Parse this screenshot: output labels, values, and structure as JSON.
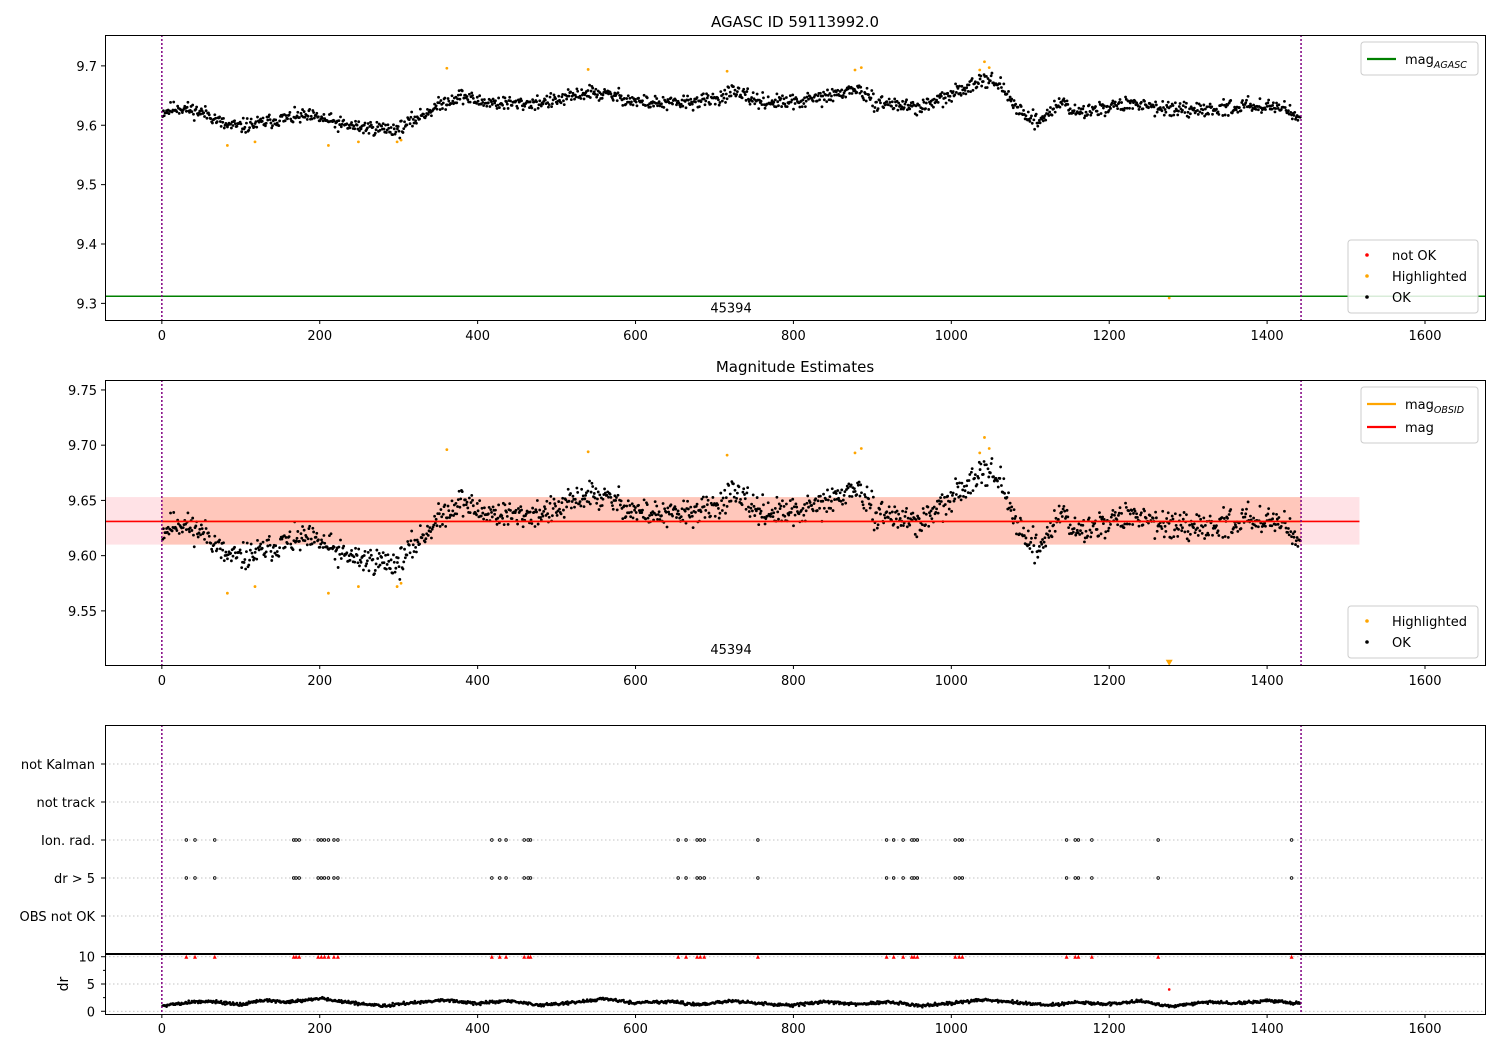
{
  "chart_data": [
    {
      "type": "scatter",
      "title": "AGASC ID 59113992.0",
      "xlabel": "",
      "ylabel": "",
      "xlim": [
        -72,
        1676
      ],
      "ylim": [
        9.272,
        9.752
      ],
      "x_ticks": [
        0,
        200,
        400,
        600,
        800,
        1000,
        1200,
        1400,
        1600
      ],
      "y_ticks": [
        9.3,
        9.4,
        9.5,
        9.6,
        9.7
      ],
      "grid": false,
      "vertical_lines": [
        0,
        1443
      ],
      "obsid_label": {
        "text": "45394",
        "x": 721,
        "y": 9.285
      },
      "reference_lines": [
        {
          "name": "mag_AGASC",
          "name_main": "mag",
          "name_sub": "AGASC",
          "y": 9.312,
          "x_range": [
            -72,
            1676
          ],
          "color": "#008000"
        }
      ],
      "legend_top": {
        "position": "top-right",
        "entries": [
          {
            "main": "mag",
            "sub": "AGASC",
            "kind": "line",
            "color": "#008000"
          }
        ]
      },
      "legend_bottom": {
        "position": "lower-right",
        "entries": [
          {
            "label": "not OK",
            "kind": "dot",
            "color": "#ff0000"
          },
          {
            "label": "Highlighted",
            "kind": "dot",
            "color": "#ffa500"
          },
          {
            "label": "OK",
            "kind": "dot",
            "color": "#000000"
          }
        ]
      },
      "series": [
        {
          "name": "OK",
          "color": "#000000",
          "generated": {
            "n": 1440,
            "x_start": 1,
            "x_end": 1442,
            "knots_x": [
              0,
              20,
              40,
              60,
              80,
              100,
              120,
              140,
              160,
              180,
              200,
              230,
              260,
              300,
              320,
              340,
              360,
              380,
              400,
              450,
              500,
              540,
              580,
              600,
              640,
              700,
              720,
              760,
              800,
              850,
              880,
              900,
              960,
              1000,
              1040,
              1060,
              1080,
              1110,
              1140,
              1160,
              1200,
              1240,
              1300,
              1360,
              1400,
              1443
            ],
            "knots_y": [
              9.622,
              9.63,
              9.625,
              9.618,
              9.6,
              9.598,
              9.602,
              9.608,
              9.612,
              9.615,
              9.612,
              9.6,
              9.596,
              9.593,
              9.61,
              9.625,
              9.64,
              9.65,
              9.64,
              9.636,
              9.641,
              9.656,
              9.648,
              9.64,
              9.636,
              9.643,
              9.656,
              9.64,
              9.638,
              9.65,
              9.662,
              9.64,
              9.63,
              9.65,
              9.68,
              9.67,
              9.632,
              9.605,
              9.64,
              9.62,
              9.632,
              9.636,
              9.622,
              9.631,
              9.635,
              9.618
            ],
            "noise": 0.013,
            "seed": 11
          }
        },
        {
          "name": "Highlighted",
          "color": "#ffa500",
          "x": [
            83,
            118,
            211,
            249,
            298,
            303,
            361,
            540,
            716,
            878,
            886,
            1036,
            1042,
            1048,
            1276
          ],
          "y": [
            9.566,
            9.572,
            9.566,
            9.572,
            9.572,
            9.575,
            9.696,
            9.694,
            9.691,
            9.693,
            9.697,
            9.693,
            9.707,
            9.697,
            9.309
          ]
        }
      ]
    },
    {
      "type": "scatter",
      "title": "Magnitude Estimates",
      "xlabel": "",
      "ylabel": "",
      "xlim": [
        -72,
        1676
      ],
      "ylim": [
        9.501,
        9.759
      ],
      "x_ticks": [
        0,
        200,
        400,
        600,
        800,
        1000,
        1200,
        1400,
        1600
      ],
      "y_ticks": [
        9.55,
        9.6,
        9.65,
        9.7,
        9.75
      ],
      "grid": false,
      "vertical_lines": [
        0,
        1443
      ],
      "obsid_label": {
        "text": "45394",
        "x": 721,
        "y": 9.511
      },
      "bands": [
        {
          "name": "mag band",
          "x_range": [
            -72,
            1517
          ],
          "y_range": [
            9.61,
            9.653
          ],
          "color": "#ffb6c1",
          "opacity": 0.4
        },
        {
          "name": "mag_OBSID band",
          "x_range": [
            0,
            1443
          ],
          "y_range": [
            9.61,
            9.653
          ],
          "color": "#ffa07a",
          "opacity": 0.4
        }
      ],
      "reference_lines": [
        {
          "name": "mag_OBSID",
          "name_main": "mag",
          "name_sub": "OBSID",
          "y": 9.631,
          "x_range": [
            0,
            1443
          ],
          "color": "#ffa500"
        },
        {
          "name": "mag",
          "y": 9.631,
          "x_range": [
            -72,
            1517
          ],
          "color": "#ff0000"
        }
      ],
      "legend_top": {
        "position": "top-right",
        "entries": [
          {
            "main": "mag",
            "sub": "OBSID",
            "kind": "line",
            "color": "#ffa500"
          },
          {
            "main": "mag",
            "sub": "",
            "kind": "line",
            "color": "#ff0000"
          }
        ]
      },
      "legend_bottom": {
        "position": "lower-right",
        "entries": [
          {
            "label": "Highlighted",
            "kind": "dot",
            "color": "#ffa500"
          },
          {
            "label": "OK",
            "kind": "dot",
            "color": "#000000"
          }
        ]
      },
      "series": [
        {
          "name": "OK",
          "color": "#000000",
          "generated": {
            "n": 1440,
            "x_start": 1,
            "x_end": 1442,
            "knots_x": [
              0,
              20,
              40,
              60,
              80,
              100,
              120,
              140,
              160,
              180,
              200,
              230,
              260,
              300,
              320,
              340,
              360,
              380,
              400,
              450,
              500,
              540,
              580,
              600,
              640,
              700,
              720,
              760,
              800,
              850,
              880,
              900,
              960,
              1000,
              1040,
              1060,
              1080,
              1110,
              1140,
              1160,
              1200,
              1240,
              1300,
              1360,
              1400,
              1443
            ],
            "knots_y": [
              9.622,
              9.63,
              9.625,
              9.618,
              9.6,
              9.598,
              9.602,
              9.608,
              9.612,
              9.615,
              9.612,
              9.6,
              9.596,
              9.593,
              9.61,
              9.625,
              9.64,
              9.65,
              9.64,
              9.636,
              9.641,
              9.656,
              9.648,
              9.64,
              9.636,
              9.643,
              9.656,
              9.64,
              9.638,
              9.65,
              9.662,
              9.64,
              9.63,
              9.65,
              9.68,
              9.67,
              9.632,
              9.605,
              9.64,
              9.62,
              9.632,
              9.636,
              9.622,
              9.631,
              9.635,
              9.618
            ],
            "noise": 0.013,
            "seed": 11
          }
        },
        {
          "name": "Highlighted",
          "color": "#ffa500",
          "x": [
            83,
            118,
            211,
            249,
            298,
            303,
            361,
            540,
            716,
            878,
            886,
            1036,
            1042,
            1048
          ],
          "y": [
            9.566,
            9.572,
            9.566,
            9.572,
            9.572,
            9.575,
            9.696,
            9.694,
            9.691,
            9.693,
            9.697,
            9.693,
            9.707,
            9.697
          ]
        },
        {
          "name": "Highlighted (off scale)",
          "color": "#ffa500",
          "marker": "triangle-down",
          "x": [
            1276
          ],
          "y": [
            9.503
          ]
        }
      ]
    },
    {
      "type": "scatter",
      "title": "",
      "xlabel": "",
      "ylabel": "",
      "xlim": [
        -72,
        1676
      ],
      "y_categories": [
        "not Kalman",
        "not track",
        "Ion. rad.",
        "dr > 5",
        "OBS not OK"
      ],
      "grid": true,
      "vertical_lines": [
        0,
        1443
      ],
      "series": [
        {
          "name": "Ion. rad.",
          "color": "#000000",
          "marker": "open-circle",
          "x": [
            31,
            42,
            67,
            167,
            170,
            174,
            198,
            202,
            206,
            211,
            218,
            223,
            418,
            428,
            436,
            459,
            464,
            467,
            654,
            664,
            678,
            682,
            687,
            755,
            918,
            927,
            939,
            950,
            953,
            957,
            1005,
            1010,
            1014,
            1146,
            1157,
            1161,
            1178,
            1262,
            1431
          ]
        },
        {
          "name": "dr > 5",
          "color": "#000000",
          "marker": "open-circle",
          "x": [
            31,
            42,
            67,
            167,
            170,
            174,
            198,
            202,
            206,
            211,
            218,
            223,
            418,
            428,
            436,
            459,
            464,
            467,
            654,
            664,
            678,
            682,
            687,
            755,
            918,
            927,
            939,
            950,
            953,
            957,
            1005,
            1010,
            1014,
            1146,
            1157,
            1161,
            1178,
            1262,
            1431
          ]
        }
      ]
    },
    {
      "type": "scatter",
      "title": "",
      "xlabel": "",
      "ylabel": "dr",
      "xlim": [
        -72,
        1676
      ],
      "ylim": [
        -0.5,
        10.5
      ],
      "y_ticks": [
        0,
        5,
        10
      ],
      "grid": true,
      "vertical_lines": [
        0,
        1443
      ],
      "series": [
        {
          "name": "dr",
          "color": "#000000",
          "generated": {
            "n": 1440,
            "x_start": 1,
            "x_end": 1442,
            "knots_x": [
              0,
              30,
              60,
              100,
              130,
              160,
              200,
              240,
              280,
              320,
              360,
              400,
              440,
              480,
              520,
              560,
              600,
              640,
              680,
              720,
              760,
              800,
              840,
              880,
              920,
              960,
              1000,
              1040,
              1080,
              1120,
              1160,
              1200,
              1240,
              1280,
              1320,
              1360,
              1400,
              1443
            ],
            "knots_y": [
              1.0,
              1.6,
              1.9,
              1.2,
              2.1,
              1.6,
              2.4,
              1.5,
              1.0,
              1.6,
              2.1,
              1.4,
              1.9,
              1.1,
              1.6,
              2.3,
              1.5,
              1.8,
              1.2,
              1.9,
              1.4,
              1.1,
              1.8,
              1.3,
              1.7,
              1.0,
              1.5,
              2.1,
              1.7,
              1.1,
              1.6,
              1.3,
              1.9,
              0.9,
              1.7,
              1.5,
              2.0,
              1.4
            ],
            "noise": 0.35,
            "seed": 5
          }
        },
        {
          "name": "dr clipped",
          "color": "#ff0000",
          "marker": "triangle-up",
          "x": [
            31,
            42,
            67,
            167,
            170,
            174,
            198,
            202,
            206,
            211,
            218,
            223,
            418,
            428,
            436,
            459,
            464,
            467,
            654,
            664,
            678,
            682,
            687,
            755,
            918,
            927,
            939,
            950,
            953,
            957,
            1005,
            1010,
            1014,
            1146,
            1157,
            1161,
            1178,
            1262,
            1431
          ],
          "y": [
            10,
            10,
            10,
            10,
            10,
            10,
            10,
            10,
            10,
            10,
            10,
            10,
            10,
            10,
            10,
            10,
            10,
            10,
            10,
            10,
            10,
            10,
            10,
            10,
            10,
            10,
            10,
            10,
            10,
            10,
            10,
            10,
            10,
            10,
            10,
            10,
            10,
            10,
            10
          ]
        },
        {
          "name": "dr outlier",
          "color": "#ff0000",
          "x": [
            1276
          ],
          "y": [
            4.0
          ]
        }
      ]
    }
  ]
}
